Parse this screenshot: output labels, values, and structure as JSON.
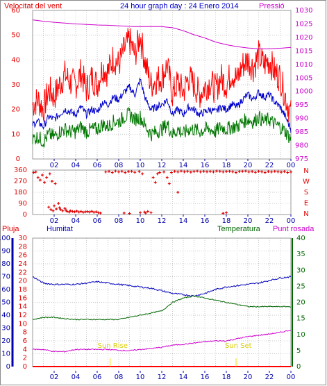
{
  "header": {
    "wind_label": "Velocitat del vent",
    "title": "24 hour graph day : 24 Enero 2014",
    "pressure_label": "Pressió"
  },
  "lower_header": {
    "rain_label": "Pluja",
    "humidity_label": "Humitat",
    "temperature_label": "Temperatura",
    "dewpoint_label": "Punt rosada"
  },
  "annotations": {
    "sunrise": "Sun Rise",
    "sunset": "Sun Set"
  },
  "colors": {
    "wind_gust": "#ff0000",
    "wind_avg": "#0000cc",
    "wind_speed": "#007700",
    "pressure": "#cc00cc",
    "direction": "#dd0000",
    "humidity": "#0000bb",
    "temperature": "#006600",
    "dewpoint": "#cc00cc",
    "rain": "#ff0000",
    "sun_marker": "#ffdd00"
  },
  "chart_data": [
    {
      "type": "line",
      "title": "24 hour graph day : 24 Enero 2014",
      "xlabel": "",
      "x_ticks": [
        "02",
        "04",
        "06",
        "08",
        "10",
        "12",
        "14",
        "16",
        "18",
        "20",
        "22",
        "00"
      ],
      "xlim": [
        0,
        24
      ],
      "left_axis": {
        "label": "Velocitat del vent",
        "ylim": [
          0,
          60
        ],
        "ticks": [
          0,
          10,
          20,
          30,
          40,
          50,
          60
        ]
      },
      "right_axis": {
        "label": "Pressió",
        "ylim": [
          975,
          1030
        ],
        "ticks": [
          975,
          980,
          985,
          990,
          995,
          1000,
          1005,
          1010,
          1015,
          1020,
          1025,
          1030
        ]
      },
      "series": [
        {
          "key": "gust",
          "x": [
            0,
            0.5,
            1,
            1.5,
            2,
            2.5,
            3,
            3.5,
            4,
            4.5,
            5,
            5.5,
            6,
            6.5,
            7,
            7.5,
            8,
            8.5,
            9,
            9.5,
            10,
            10.5,
            11,
            11.5,
            12,
            12.5,
            13,
            13.5,
            14,
            14.5,
            15,
            15.5,
            16,
            16.5,
            17,
            17.5,
            18,
            18.5,
            19,
            19.5,
            20,
            20.5,
            21,
            21.5,
            22,
            22.5,
            23,
            23.5,
            24
          ],
          "y": [
            22,
            24,
            20,
            28,
            25,
            30,
            34,
            31,
            30,
            35,
            28,
            33,
            30,
            37,
            35,
            41,
            38,
            44,
            48,
            42,
            50,
            38,
            30,
            32,
            33,
            38,
            26,
            31,
            27,
            33,
            30,
            26,
            29,
            31,
            28,
            33,
            30,
            35,
            32,
            38,
            40,
            37,
            42,
            38,
            40,
            35,
            33,
            25,
            18
          ],
          "axis": "left"
        },
        {
          "key": "average",
          "x": [
            0,
            0.5,
            1,
            1.5,
            2,
            2.5,
            3,
            3.5,
            4,
            4.5,
            5,
            5.5,
            6,
            6.5,
            7,
            7.5,
            8,
            8.5,
            9,
            9.5,
            10,
            10.5,
            11,
            11.5,
            12,
            12.5,
            13,
            13.5,
            14,
            14.5,
            15,
            15.5,
            16,
            16.5,
            17,
            17.5,
            18,
            18.5,
            19,
            19.5,
            20,
            20.5,
            21,
            21.5,
            22,
            22.5,
            23,
            23.5,
            24
          ],
          "y": [
            14,
            15,
            13,
            17,
            16,
            18,
            20,
            19,
            18,
            21,
            18,
            20,
            19,
            23,
            22,
            25,
            24,
            27,
            29,
            26,
            32,
            24,
            20,
            21,
            22,
            24,
            18,
            20,
            18,
            21,
            20,
            18,
            19,
            20,
            19,
            21,
            20,
            22,
            21,
            24,
            26,
            24,
            27,
            25,
            26,
            23,
            21,
            17,
            12
          ],
          "axis": "left"
        },
        {
          "key": "speed",
          "x": [
            0,
            0.5,
            1,
            1.5,
            2,
            2.5,
            3,
            3.5,
            4,
            4.5,
            5,
            5.5,
            6,
            6.5,
            7,
            7.5,
            8,
            8.5,
            9,
            9.5,
            10,
            10.5,
            11,
            11.5,
            12,
            12.5,
            13,
            13.5,
            14,
            14.5,
            15,
            15.5,
            16,
            16.5,
            17,
            17.5,
            18,
            18.5,
            19,
            19.5,
            20,
            20.5,
            21,
            21.5,
            22,
            22.5,
            23,
            23.5,
            24
          ],
          "y": [
            8,
            9,
            7,
            10,
            9,
            11,
            12,
            11,
            11,
            13,
            11,
            12,
            12,
            14,
            13,
            15,
            15,
            17,
            18,
            16,
            17,
            13,
            10,
            11,
            12,
            14,
            10,
            12,
            10,
            12,
            12,
            11,
            12,
            12,
            11,
            13,
            12,
            13,
            13,
            15,
            16,
            15,
            17,
            15,
            16,
            14,
            13,
            11,
            8
          ],
          "axis": "left"
        },
        {
          "key": "pressure",
          "x": [
            0,
            1,
            2,
            3,
            4,
            5,
            6,
            7,
            8,
            9,
            10,
            11,
            12,
            13,
            14,
            15,
            16,
            17,
            18,
            19,
            20,
            21,
            22,
            23,
            24
          ],
          "y": [
            1026.5,
            1026,
            1025.6,
            1025.3,
            1025,
            1024.8,
            1024.6,
            1024.5,
            1024.3,
            1024.1,
            1024,
            1024,
            1024,
            1023.6,
            1022.5,
            1021,
            1019.8,
            1018.3,
            1017.3,
            1016.6,
            1016.1,
            1015.8,
            1015.8,
            1016,
            1016.3
          ],
          "axis": "right"
        }
      ]
    },
    {
      "type": "scatter",
      "title": "",
      "xlim": [
        0,
        24
      ],
      "x_ticks": [
        "02",
        "04",
        "06",
        "08",
        "10",
        "12",
        "14",
        "16",
        "18",
        "20",
        "22",
        "00"
      ],
      "left_axis": {
        "ylim": [
          0,
          360
        ],
        "ticks": [
          0,
          90,
          180,
          270,
          360
        ]
      },
      "right_axis": {
        "labels": [
          "N",
          "W",
          "S",
          "E",
          "N"
        ]
      },
      "series": [
        {
          "key": "direction",
          "name": "",
          "points": [
            [
              0.1,
              340
            ],
            [
              0.3,
              345
            ],
            [
              0.5,
              300
            ],
            [
              0.7,
              280
            ],
            [
              0.9,
              320
            ],
            [
              1.1,
              260
            ],
            [
              1.3,
              300
            ],
            [
              1.6,
              330
            ],
            [
              1.8,
              270
            ],
            [
              2.1,
              250
            ],
            [
              1.5,
              60
            ],
            [
              1.7,
              40
            ],
            [
              1.9,
              30
            ],
            [
              2.0,
              70
            ],
            [
              2.2,
              45
            ],
            [
              2.4,
              90
            ],
            [
              2.5,
              55
            ],
            [
              2.6,
              40
            ],
            [
              2.8,
              30
            ],
            [
              3.0,
              50
            ],
            [
              3.1,
              35
            ],
            [
              3.2,
              25
            ],
            [
              3.4,
              20
            ],
            [
              3.5,
              30
            ],
            [
              3.7,
              25
            ],
            [
              3.9,
              22
            ],
            [
              4.1,
              28
            ],
            [
              4.3,
              20
            ],
            [
              4.5,
              25
            ],
            [
              4.7,
              18
            ],
            [
              4.9,
              22
            ],
            [
              5.1,
              24
            ],
            [
              5.3,
              20
            ],
            [
              5.5,
              26
            ],
            [
              5.7,
              18
            ],
            [
              5.9,
              22
            ],
            [
              6.1,
              15
            ],
            [
              6.3,
              12
            ],
            [
              6.8,
              345
            ],
            [
              7.1,
              350
            ],
            [
              7.4,
              340
            ],
            [
              7.7,
              352
            ],
            [
              8.0,
              345
            ],
            [
              8.3,
              350
            ],
            [
              8.6,
              340
            ],
            [
              8.9,
              348
            ],
            [
              9.2,
              350
            ],
            [
              9.5,
              342
            ],
            [
              9.9,
              348
            ],
            [
              10.2,
              330
            ],
            [
              10.4,
              20
            ],
            [
              10.7,
              25
            ],
            [
              11.0,
              15
            ],
            [
              11.2,
              300
            ],
            [
              11.4,
              260
            ],
            [
              11.6,
              330
            ],
            [
              11.8,
              340
            ],
            [
              12.2,
              345
            ],
            [
              12.5,
              300
            ],
            [
              12.7,
              250
            ],
            [
              12.9,
              340
            ],
            [
              13.2,
              350
            ],
            [
              13.5,
              345
            ],
            [
              13.8,
              352
            ],
            [
              14.1,
              346
            ],
            [
              14.4,
              350
            ],
            [
              14.7,
              344
            ],
            [
              15.0,
              348
            ],
            [
              15.3,
              352
            ],
            [
              15.6,
              345
            ],
            [
              15.9,
              350
            ],
            [
              16.2,
              346
            ],
            [
              16.5,
              348
            ],
            [
              16.8,
              345
            ],
            [
              17.1,
              352
            ],
            [
              17.4,
              350
            ],
            [
              17.7,
              345
            ],
            [
              18.0,
              348
            ],
            [
              18.3,
              350
            ],
            [
              18.6,
              346
            ],
            [
              18.9,
              340
            ],
            [
              19.2,
              348
            ],
            [
              19.5,
              350
            ],
            [
              19.8,
              352
            ],
            [
              20.1,
              345
            ],
            [
              20.4,
              348
            ],
            [
              20.7,
              342
            ],
            [
              21.0,
              350
            ],
            [
              21.3,
              346
            ],
            [
              21.6,
              340
            ],
            [
              21.9,
              348
            ],
            [
              22.2,
              345
            ],
            [
              22.5,
              350
            ],
            [
              22.8,
              346
            ],
            [
              23.1,
              344
            ],
            [
              23.4,
              348
            ],
            [
              23.7,
              340
            ],
            [
              24.0,
              345
            ],
            [
              8.5,
              12
            ],
            [
              9.0,
              8
            ],
            [
              10.0,
              15
            ],
            [
              10.5,
              12
            ],
            [
              13.5,
              180
            ],
            [
              17.7,
              10
            ],
            [
              18.0,
              15
            ]
          ]
        }
      ]
    },
    {
      "type": "line",
      "title": "",
      "xlim": [
        0,
        24
      ],
      "x_ticks": [
        "02",
        "04",
        "06",
        "08",
        "10",
        "12",
        "14",
        "16",
        "18",
        "20",
        "22",
        "00"
      ],
      "left_rain_axis": {
        "label": "Pluja",
        "ylim": [
          0,
          100
        ],
        "ticks": [
          0,
          10,
          20,
          30,
          40,
          50,
          60,
          70,
          80,
          90,
          100
        ]
      },
      "left_temp_axis": {
        "ylim": [
          0,
          30
        ],
        "ticks": [
          0,
          2,
          4,
          6,
          8,
          10,
          12,
          14,
          16,
          18,
          20,
          22,
          24,
          26,
          28,
          30
        ]
      },
      "right_axis": {
        "label": "Temperatura",
        "ylim": [
          0,
          40
        ],
        "ticks": [
          0,
          5,
          10,
          15,
          20,
          25,
          30,
          35,
          40
        ]
      },
      "series": [
        {
          "key": "humidity",
          "x": [
            0,
            1,
            2,
            3,
            4,
            5,
            6,
            7,
            8,
            9,
            10,
            11,
            12,
            13,
            14,
            15,
            16,
            17,
            18,
            19,
            20,
            21,
            22,
            23,
            24
          ],
          "y": [
            70,
            65,
            64,
            64,
            64,
            65,
            66,
            65,
            64,
            63,
            62,
            61,
            59,
            57,
            56,
            55,
            57,
            60,
            62,
            63,
            64,
            65,
            67,
            69,
            70
          ],
          "axis": "rain"
        },
        {
          "key": "temperature",
          "x": [
            0,
            1,
            2,
            3,
            4,
            5,
            6,
            7,
            8,
            9,
            10,
            11,
            12,
            13,
            14,
            15,
            16,
            17,
            18,
            19,
            20,
            21,
            22,
            23,
            24
          ],
          "y": [
            11,
            11.5,
            11.5,
            11.2,
            11,
            11,
            11,
            11,
            11,
            11.5,
            12,
            12.5,
            13,
            15,
            16,
            16.5,
            16,
            15.5,
            15,
            14.5,
            14,
            14,
            14,
            14,
            14
          ],
          "axis": "temp"
        },
        {
          "key": "dewpoint",
          "x": [
            0,
            1,
            2,
            3,
            4,
            5,
            6,
            7,
            8,
            9,
            10,
            11,
            12,
            13,
            14,
            15,
            16,
            17,
            18,
            19,
            20,
            21,
            22,
            23,
            24
          ],
          "y": [
            4,
            4,
            3.5,
            3.5,
            4,
            4,
            4,
            4,
            3.8,
            3.7,
            4,
            4.2,
            4.5,
            5,
            5.2,
            5.5,
            5.8,
            6,
            6,
            6.5,
            7,
            7.3,
            7.6,
            8,
            8.5
          ],
          "axis": "temp"
        },
        {
          "key": "rain",
          "x": [
            0,
            24
          ],
          "y": [
            0,
            0
          ],
          "axis": "rain"
        }
      ],
      "markers": [
        {
          "key": "sunrise",
          "x": 7.2
        },
        {
          "key": "sunset",
          "x": 18.9
        }
      ]
    }
  ]
}
